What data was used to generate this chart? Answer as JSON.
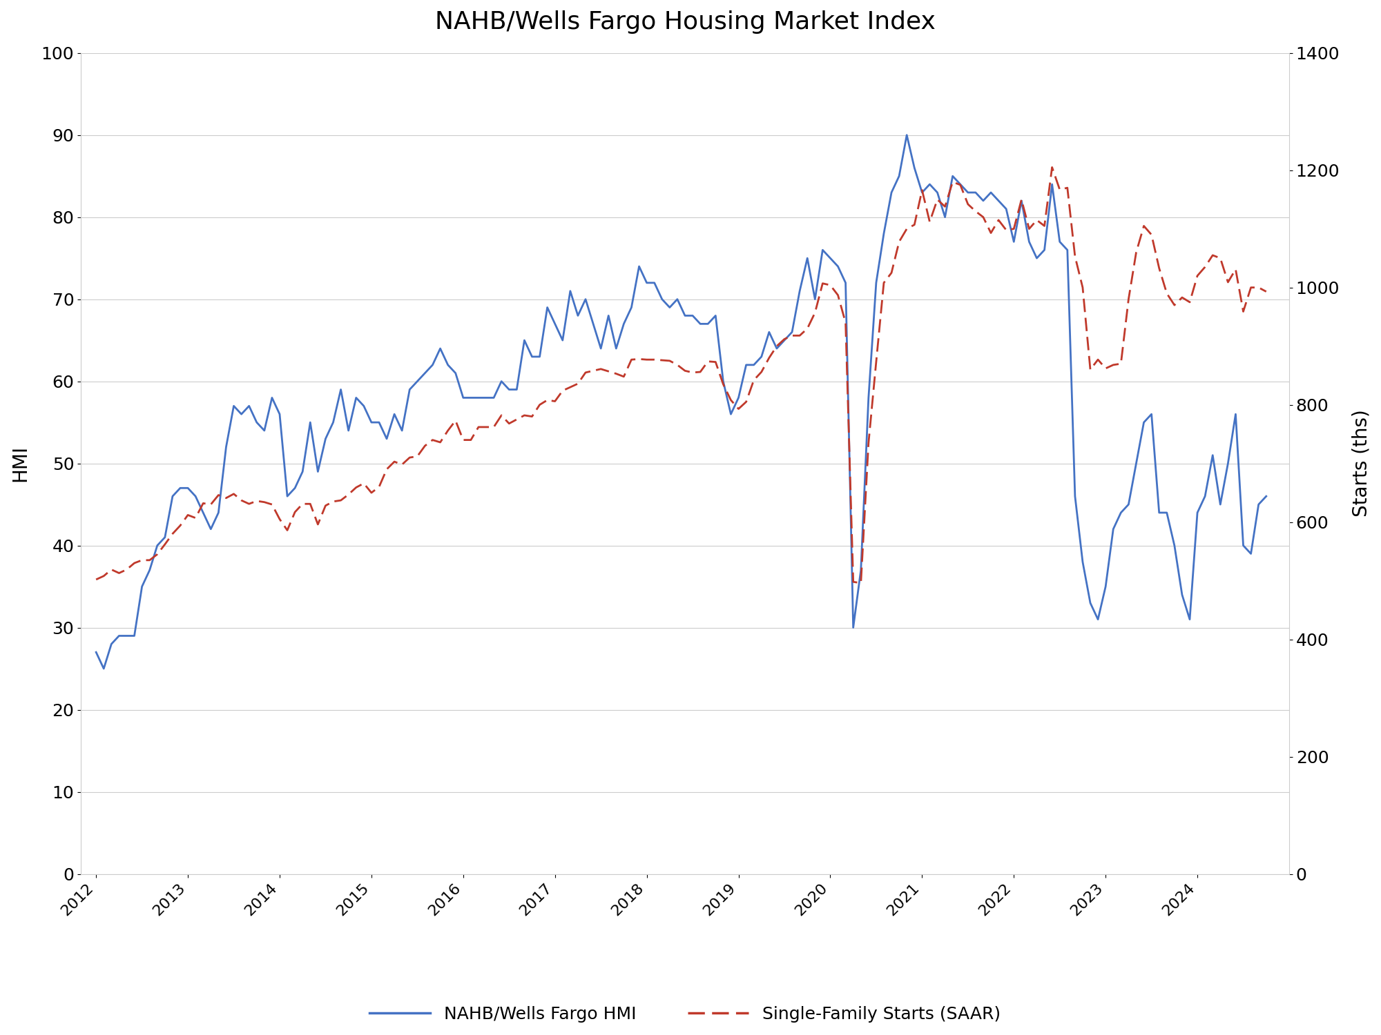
{
  "title": "NAHB/Wells Fargo Housing Market Index",
  "ylabel_left": "HMI",
  "ylabel_right": "Starts (ths)",
  "hmi_label": "NAHB/Wells Fargo HMI",
  "starts_label": "Single-Family Starts (SAAR)",
  "hmi_color": "#4472C4",
  "starts_color": "#C0392B",
  "background_color": "#FFFFFF",
  "ylim_left": [
    0,
    100
  ],
  "ylim_right": [
    0,
    1400
  ],
  "yticks_left": [
    0,
    10,
    20,
    30,
    40,
    50,
    60,
    70,
    80,
    90,
    100
  ],
  "yticks_right": [
    0,
    200,
    400,
    600,
    800,
    1000,
    1200,
    1400
  ],
  "x_tick_labels": [
    "2012",
    "2013",
    "2014",
    "2015",
    "2016",
    "2017",
    "2018",
    "2019",
    "2020",
    "2021",
    "2022",
    "2023",
    "2024"
  ],
  "hmi_values": [
    27,
    25,
    28,
    29,
    29,
    29,
    35,
    37,
    40,
    41,
    46,
    47,
    47,
    46,
    44,
    42,
    44,
    52,
    57,
    56,
    57,
    55,
    54,
    58,
    56,
    46,
    47,
    49,
    55,
    49,
    53,
    55,
    59,
    54,
    58,
    57,
    55,
    55,
    53,
    56,
    54,
    59,
    60,
    61,
    62,
    64,
    62,
    61,
    58,
    58,
    58,
    58,
    58,
    60,
    59,
    59,
    65,
    63,
    63,
    69,
    67,
    65,
    71,
    68,
    70,
    67,
    64,
    68,
    64,
    67,
    69,
    74,
    72,
    72,
    70,
    69,
    70,
    68,
    68,
    67,
    67,
    68,
    60,
    56,
    58,
    62,
    62,
    63,
    66,
    64,
    65,
    66,
    71,
    75,
    70,
    76,
    75,
    74,
    72,
    30,
    37,
    58,
    72,
    78,
    83,
    85,
    90,
    86,
    83,
    84,
    83,
    80,
    85,
    84,
    83,
    83,
    82,
    83,
    82,
    81,
    77,
    82,
    77,
    75,
    76,
    84,
    77,
    76,
    46,
    38,
    33,
    31,
    35,
    42,
    44,
    45,
    50,
    55,
    56,
    44,
    44,
    40,
    34,
    31,
    44,
    46,
    51,
    45,
    50,
    56,
    40,
    39,
    45,
    46
  ],
  "starts_values": [
    502,
    508,
    519,
    513,
    519,
    530,
    535,
    535,
    545,
    562,
    580,
    594,
    612,
    607,
    632,
    630,
    646,
    641,
    648,
    637,
    631,
    636,
    634,
    630,
    605,
    586,
    617,
    631,
    631,
    596,
    628,
    635,
    637,
    647,
    659,
    666,
    650,
    660,
    690,
    703,
    698,
    710,
    712,
    730,
    740,
    736,
    756,
    773,
    740,
    740,
    762,
    762,
    762,
    782,
    768,
    775,
    782,
    780,
    800,
    808,
    806,
    824,
    830,
    836,
    855,
    858,
    861,
    857,
    853,
    848,
    877,
    878,
    877,
    877,
    876,
    875,
    868,
    858,
    855,
    856,
    874,
    873,
    835,
    808,
    793,
    805,
    842,
    856,
    880,
    900,
    912,
    918,
    918,
    930,
    957,
    1007,
    1004,
    987,
    940,
    498,
    496,
    735,
    873,
    1008,
    1025,
    1078,
    1100,
    1107,
    1166,
    1112,
    1150,
    1138,
    1180,
    1175,
    1142,
    1130,
    1120,
    1093,
    1115,
    1098,
    1100,
    1150,
    1100,
    1115,
    1105,
    1205,
    1167,
    1170,
    1053,
    1000,
    860,
    877,
    862,
    868,
    870,
    980,
    1060,
    1105,
    1090,
    1033,
    990,
    970,
    983,
    975,
    1020,
    1035,
    1055,
    1050,
    1009,
    1031,
    959,
    1000,
    1000,
    993
  ]
}
